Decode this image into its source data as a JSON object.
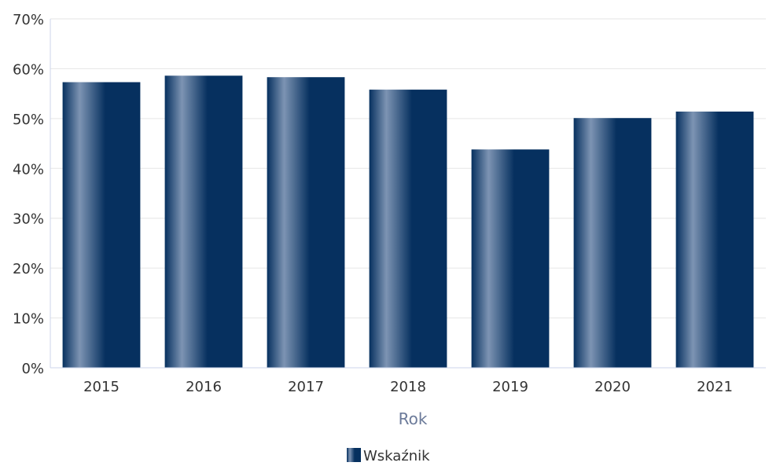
{
  "chart_data": {
    "type": "bar",
    "title": "",
    "xlabel": "Rok",
    "ylabel": "",
    "categories": [
      "2015",
      "2016",
      "2017",
      "2018",
      "2019",
      "2020",
      "2021"
    ],
    "series": [
      {
        "name": "Wskaźnik",
        "values": [
          57.3,
          58.6,
          58.3,
          55.8,
          43.8,
          50.1,
          51.4
        ]
      }
    ],
    "ylim": [
      0,
      70
    ],
    "yticks": [
      0,
      10,
      20,
      30,
      40,
      50,
      60,
      70
    ],
    "ytick_labels": [
      "0%",
      "10%",
      "20%",
      "30%",
      "40%",
      "50%",
      "60%",
      "70%"
    ],
    "grid": true,
    "legend_position": "bottom",
    "colors": {
      "bar_dark": "#06305f",
      "bar_light": "#7d94b3",
      "grid": "#e6e6e6",
      "axis": "#ccd6eb",
      "axis_title": "#6b7a99"
    }
  }
}
